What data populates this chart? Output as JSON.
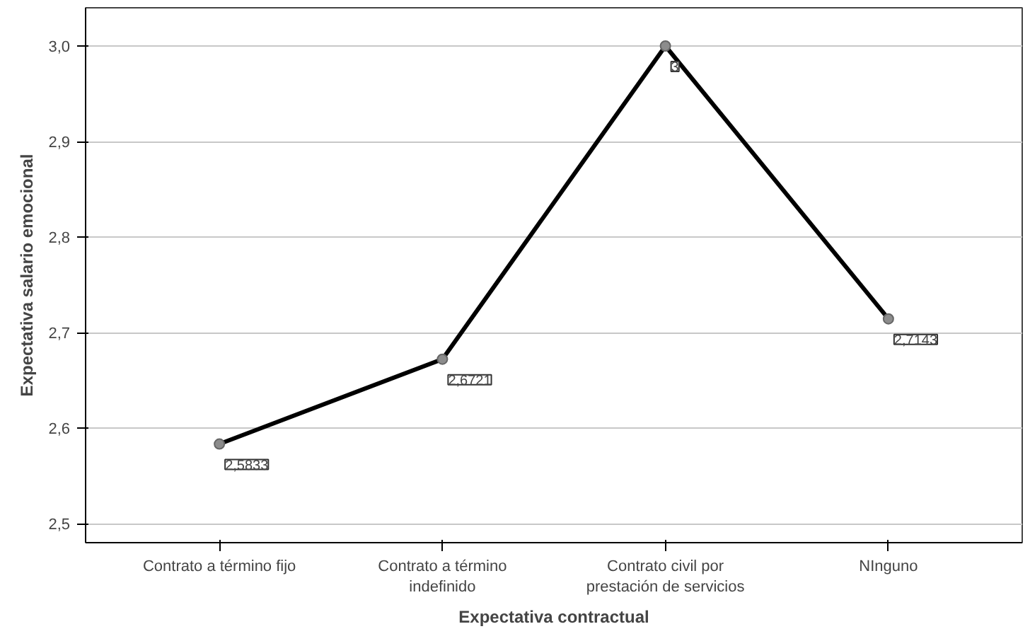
{
  "chart_data": {
    "type": "line",
    "xlabel": "Expectativa contractual",
    "ylabel": "Expectativa salario emocional",
    "categories": [
      "Contrato a término fijo",
      "Contrato a término\nindefinido",
      "Contrato civil por\nprestación de servicios",
      "NInguno"
    ],
    "values": [
      2.5833,
      2.6721,
      3,
      2.7143
    ],
    "value_labels": [
      "2,5833",
      "2,6721",
      "3",
      "2,7143"
    ],
    "color": "#000000",
    "marker": "circle",
    "line_style": "solid",
    "grid": "y",
    "ylim": [
      2.48,
      3.04
    ],
    "yticks": [
      {
        "value": 2.5,
        "label": "2,5"
      },
      {
        "value": 2.6,
        "label": "2,6"
      },
      {
        "value": 2.7,
        "label": "2,7"
      },
      {
        "value": 2.8,
        "label": "2,8"
      },
      {
        "value": 2.9,
        "label": "2,9"
      },
      {
        "value": 3.0,
        "label": "3,0"
      }
    ]
  }
}
